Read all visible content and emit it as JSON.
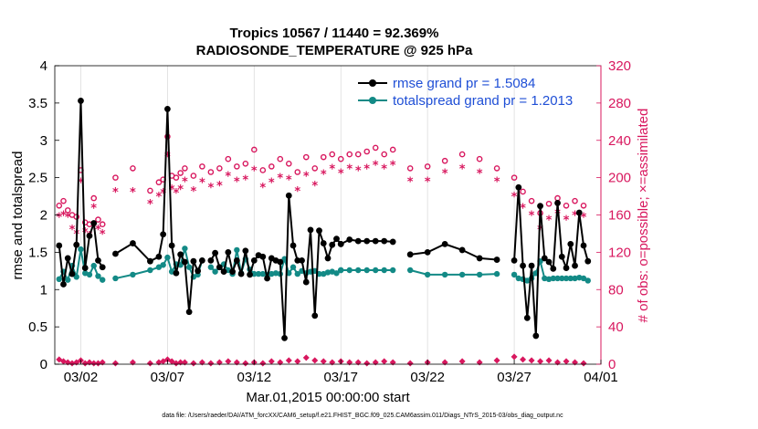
{
  "chart_data": {
    "type": "line",
    "title": "Tropics 10567 / 11440 = 92.369%",
    "subtitle": "RADIOSONDE_TEMPERATURE @ 925 hPa",
    "xlabel": "Mar.01,2015 00:00:00 start",
    "ylabel": "rmse and totalspread",
    "y2label": "# of obs: o=possible; ×=assimilated",
    "footnote": "data file: /Users/raeder/DAI/ATM_forcXX/CAM6_setup/f.e21.FHIST_BGC.f09_025.CAM6assim.011/Diags_NTrS_2015-03/obs_diag_output.nc",
    "xlim": [
      0.5,
      32
    ],
    "ylim": [
      0,
      4
    ],
    "y2lim": [
      0,
      320
    ],
    "x_ticks": [
      2,
      7,
      12,
      17,
      22,
      27,
      32
    ],
    "x_tick_labels": [
      "03/02",
      "03/07",
      "03/12",
      "03/17",
      "03/22",
      "03/27",
      "04/01"
    ],
    "y_ticks": [
      "0",
      "0.5",
      "1",
      "1.5",
      "2",
      "2.5",
      "3",
      "3.5",
      "4"
    ],
    "y2_ticks": [
      "0",
      "40",
      "80",
      "120",
      "160",
      "200",
      "240",
      "280",
      "320"
    ],
    "legend": [
      {
        "name": "rmse grand pr = 1.5084",
        "color": "#000000"
      },
      {
        "name": "totalspread grand pr = 1.2013",
        "color": "#138a86"
      }
    ],
    "colors": {
      "rmse": "#000000",
      "spread": "#138a86",
      "obs": "#d8175e"
    },
    "series": [
      {
        "name": "rmse",
        "segments": [
          {
            "x": [
              0.75,
              1.0,
              1.25,
              1.5,
              1.75,
              2.0,
              2.25,
              2.5,
              2.75,
              3.0,
              3.25
            ],
            "y": [
              1.59,
              1.07,
              1.42,
              1.21,
              1.6,
              3.53,
              1.29,
              1.72,
              1.89,
              1.39,
              1.3
            ]
          },
          {
            "x": [
              4,
              5,
              6,
              6.5,
              6.75,
              7.0,
              7.25,
              7.5,
              7.75,
              8.0,
              8.25,
              8.5,
              8.75,
              9.0
            ],
            "y": [
              1.48,
              1.62,
              1.38,
              1.44,
              1.74,
              3.42,
              1.59,
              1.22,
              1.47,
              1.37,
              0.7,
              1.38,
              1.25,
              1.39
            ]
          },
          {
            "x": [
              9.5,
              9.75,
              10.0,
              10.25,
              10.5,
              10.75,
              11.0,
              11.25,
              11.5,
              11.75,
              12.0,
              12.25,
              12.5,
              12.75,
              13.0,
              13.25,
              13.5,
              13.75,
              14.0,
              14.25,
              14.5,
              14.75,
              15.0,
              15.25,
              15.5,
              15.75,
              16.0,
              16.25,
              16.5,
              16.75,
              17.0
            ],
            "y": [
              1.39,
              1.49,
              1.3,
              1.24,
              1.5,
              1.24,
              1.39,
              1.21,
              1.52,
              1.2,
              1.39,
              1.46,
              1.44,
              1.15,
              1.42,
              1.39,
              1.37,
              0.35,
              2.26,
              1.59,
              1.39,
              1.39,
              1.1,
              1.8,
              0.65,
              1.79,
              1.62,
              1.42,
              1.6,
              1.68,
              1.61
            ]
          },
          {
            "x": [
              17.0,
              17.5,
              18.0,
              18.5,
              19.0,
              19.5,
              20.0
            ],
            "y": [
              1.61,
              1.67,
              1.65,
              1.65,
              1.65,
              1.65,
              1.64
            ]
          },
          {
            "x": [
              21,
              22,
              23,
              24,
              25,
              26
            ],
            "y": [
              1.47,
              1.5,
              1.61,
              1.53,
              1.42,
              1.4
            ]
          },
          {
            "x": [
              27.0,
              27.25,
              27.5,
              27.75,
              28.0,
              28.25,
              28.5,
              28.75,
              29.0,
              29.25,
              29.5,
              29.75,
              30.0,
              30.25,
              30.5,
              30.75,
              31.0,
              31.25
            ],
            "y": [
              1.39,
              2.37,
              1.32,
              0.62,
              1.32,
              0.38,
              2.12,
              1.42,
              1.37,
              1.28,
              2.16,
              1.44,
              1.29,
              1.61,
              1.32,
              2.03,
              1.59,
              1.38
            ]
          }
        ]
      },
      {
        "name": "totalspread",
        "segments": [
          {
            "x": [
              0.75,
              1.0,
              1.25,
              1.5,
              1.75,
              2.0,
              2.25,
              2.5,
              2.75,
              3.0,
              3.25
            ],
            "y": [
              1.14,
              1.24,
              1.13,
              1.32,
              1.17,
              1.54,
              1.22,
              1.2,
              1.32,
              1.18,
              1.13
            ]
          },
          {
            "x": [
              4,
              5,
              6,
              6.5,
              6.75,
              7.0,
              7.25,
              7.5,
              7.75,
              8.0,
              8.25,
              8.5,
              8.75,
              9.0
            ],
            "y": [
              1.15,
              1.2,
              1.26,
              1.3,
              1.33,
              1.43,
              1.24,
              1.34,
              1.33,
              1.55,
              1.3,
              1.17,
              1.2,
              1.39
            ]
          },
          {
            "x": [
              9.5,
              9.75,
              10.0,
              10.25,
              10.5,
              10.75,
              11.0,
              11.25,
              11.5,
              11.75,
              12.0,
              12.25,
              12.5,
              12.75,
              13.0,
              13.25,
              13.5,
              13.75,
              14.0,
              14.25,
              14.5,
              14.75,
              15.0,
              15.25,
              15.5,
              15.75,
              16.0,
              16.25,
              16.5,
              16.75,
              17.0
            ],
            "y": [
              1.3,
              1.24,
              1.3,
              1.34,
              1.26,
              1.21,
              1.53,
              1.22,
              1.41,
              1.27,
              1.21,
              1.21,
              1.21,
              1.2,
              1.21,
              1.22,
              1.21,
              1.41,
              1.22,
              1.3,
              1.21,
              1.25,
              1.22,
              1.24,
              1.25,
              1.21,
              1.21,
              1.23,
              1.24,
              1.22,
              1.26
            ]
          },
          {
            "x": [
              17.0,
              17.5,
              18.0,
              18.5,
              19.0,
              19.5,
              20.0
            ],
            "y": [
              1.26,
              1.26,
              1.26,
              1.26,
              1.26,
              1.26,
              1.26
            ]
          },
          {
            "x": [
              21,
              22,
              23,
              24,
              25,
              26
            ],
            "y": [
              1.26,
              1.2,
              1.2,
              1.2,
              1.2,
              1.21
            ]
          },
          {
            "x": [
              27.0,
              27.25,
              27.5,
              27.75,
              28.0,
              28.25,
              28.5,
              28.75,
              29.0,
              29.25,
              29.5,
              29.75,
              30.0,
              30.25,
              30.5,
              30.75,
              31.0,
              31.25
            ],
            "y": [
              1.2,
              1.15,
              1.14,
              1.12,
              1.15,
              1.22,
              1.38,
              1.15,
              1.14,
              1.15,
              1.15,
              1.15,
              1.15,
              1.15,
              1.15,
              1.16,
              1.15,
              1.12
            ]
          }
        ]
      }
    ],
    "obs_possible": {
      "x": [
        0.75,
        1.0,
        1.25,
        1.5,
        1.75,
        2.0,
        2.25,
        2.5,
        2.75,
        3.0,
        3.25,
        4,
        5,
        6,
        6.5,
        6.75,
        7.0,
        7.25,
        7.5,
        7.75,
        8.0,
        8.5,
        9.0,
        9.5,
        10.0,
        10.5,
        11.0,
        11.5,
        12.0,
        12.5,
        13.0,
        13.5,
        14.0,
        14.5,
        15.0,
        15.5,
        16.0,
        16.5,
        17.0,
        17.5,
        18.0,
        18.5,
        19.0,
        19.5,
        20.0,
        21,
        22,
        23,
        24,
        25,
        26,
        27.0,
        27.5,
        28.0,
        28.5,
        29.0,
        29.5,
        30.0,
        30.5,
        31.0
      ],
      "y": [
        170,
        175,
        165,
        160,
        158,
        208,
        152,
        150,
        178,
        155,
        150,
        200,
        210,
        186,
        195,
        198,
        244,
        202,
        200,
        205,
        210,
        202,
        212,
        206,
        210,
        220,
        212,
        215,
        230,
        208,
        212,
        220,
        215,
        206,
        222,
        210,
        222,
        225,
        220,
        225,
        225,
        228,
        232,
        225,
        230,
        210,
        212,
        218,
        225,
        220,
        210,
        200,
        185,
        175,
        162,
        172,
        178,
        170,
        175,
        170
      ]
    },
    "obs_assimilated": {
      "x": [
        0.75,
        1.0,
        1.25,
        1.5,
        1.75,
        2.0,
        2.25,
        2.5,
        2.75,
        3.0,
        3.25,
        4,
        5,
        6,
        6.5,
        6.75,
        7.0,
        7.25,
        7.5,
        7.75,
        8.0,
        8.5,
        9.0,
        9.5,
        10.0,
        10.5,
        11.0,
        11.5,
        12.0,
        12.5,
        13.0,
        13.5,
        14.0,
        14.5,
        15.0,
        15.5,
        16.0,
        16.5,
        17.0,
        17.5,
        18.0,
        18.5,
        19.0,
        19.5,
        20.0,
        21,
        22,
        23,
        24,
        25,
        26,
        27.0,
        27.5,
        28.0,
        28.5,
        29.0,
        29.5,
        30.0,
        30.5,
        31.0
      ],
      "y": [
        158,
        160,
        158,
        145,
        140,
        195,
        142,
        138,
        168,
        145,
        140,
        185,
        185,
        172,
        180,
        184,
        223,
        188,
        184,
        188,
        196,
        186,
        195,
        190,
        192,
        202,
        196,
        198,
        208,
        190,
        195,
        200,
        198,
        186,
        202,
        192,
        204,
        210,
        205,
        210,
        208,
        210,
        214,
        210,
        214,
        196,
        196,
        205,
        210,
        205,
        196,
        180,
        168,
        160,
        145,
        155,
        162,
        155,
        160,
        158
      ]
    },
    "obs_rejected": {
      "x": [
        0.75,
        1.0,
        1.25,
        1.5,
        1.75,
        2.0,
        2.25,
        2.5,
        2.75,
        3.0,
        3.25,
        4,
        5,
        6,
        6.5,
        6.75,
        7.0,
        7.25,
        7.5,
        7.75,
        8.0,
        8.5,
        9.0,
        9.5,
        10.0,
        10.5,
        11.0,
        11.5,
        12.0,
        12.5,
        13.0,
        13.5,
        14.0,
        14.5,
        15.0,
        15.5,
        16.0,
        16.5,
        17.0,
        17.5,
        18.0,
        18.5,
        19.0,
        19.5,
        20.0,
        21,
        22,
        23,
        24,
        25,
        26,
        27.0,
        27.5,
        28.0,
        28.5,
        29.0,
        29.5,
        30.0,
        30.5,
        31.0
      ],
      "y": [
        5,
        3,
        2,
        1,
        2,
        4,
        1,
        2,
        1,
        1,
        2,
        1,
        2,
        1,
        2,
        3,
        5,
        3,
        1,
        2,
        2,
        1,
        2,
        1,
        2,
        3,
        2,
        1,
        2,
        1,
        3,
        2,
        4,
        3,
        7,
        4,
        3,
        2,
        3,
        2,
        2,
        1,
        2,
        3,
        2,
        1,
        2,
        2,
        3,
        2,
        4,
        8,
        5,
        4,
        3,
        4,
        2,
        3,
        2,
        1
      ]
    }
  }
}
